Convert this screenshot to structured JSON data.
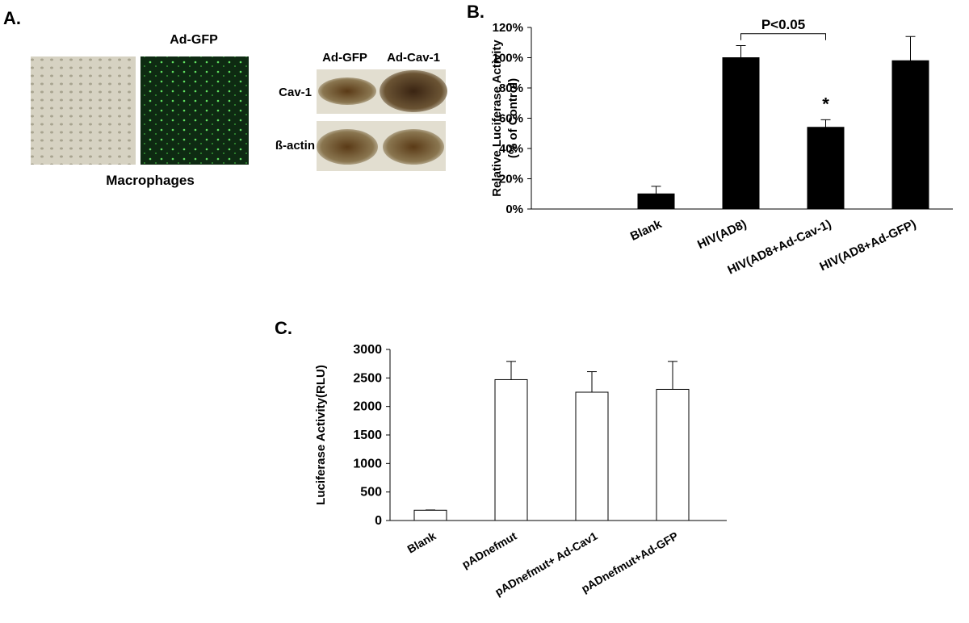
{
  "panel_a": {
    "label": "A.",
    "image_title": "Ad-GFP",
    "image_caption": "Macrophages",
    "blot_columns": [
      "Ad-GFP",
      "Ad-Cav-1"
    ],
    "blot_rows": [
      "Cav-1",
      "ß-actin"
    ]
  },
  "chart_data": [
    {
      "type": "bar",
      "label": "B.",
      "ylabel": [
        "Relative Luciferase Activity",
        "(% of Control)"
      ],
      "categories": [
        "Blank",
        "HIV(AD8)",
        "HIV(AD8+Ad-Cav-1)",
        "HIV(AD8+Ad-GFP)"
      ],
      "values": [
        10,
        100,
        54,
        98
      ],
      "errors": [
        5,
        8,
        5,
        16
      ],
      "color": "#000000",
      "ylim": [
        0,
        120
      ],
      "yticks": [
        {
          "value": 0,
          "label": "0%"
        },
        {
          "value": 20,
          "label": "20%"
        },
        {
          "value": 40,
          "label": "40%"
        },
        {
          "value": 60,
          "label": "60%"
        },
        {
          "value": 80,
          "label": "80%"
        },
        {
          "value": 100,
          "label": "100%"
        },
        {
          "value": 120,
          "label": "120%"
        }
      ],
      "annotations": [
        "P<0.05",
        "*"
      ]
    },
    {
      "type": "bar",
      "label": "C.",
      "ylabel": [
        "Luciferase Activity(RLU)"
      ],
      "categories": [
        "Blank",
        "pADnefmut",
        "pADnefmut+ Ad-Cav1",
        "pADnefmut+Ad-GFP"
      ],
      "values": [
        180,
        2470,
        2250,
        2300
      ],
      "errors": [
        5,
        320,
        360,
        490
      ],
      "color": "#ffffff",
      "ylim": [
        0,
        3000
      ],
      "yticks": [
        0,
        500,
        1000,
        1500,
        2000,
        2500,
        3000
      ]
    }
  ]
}
